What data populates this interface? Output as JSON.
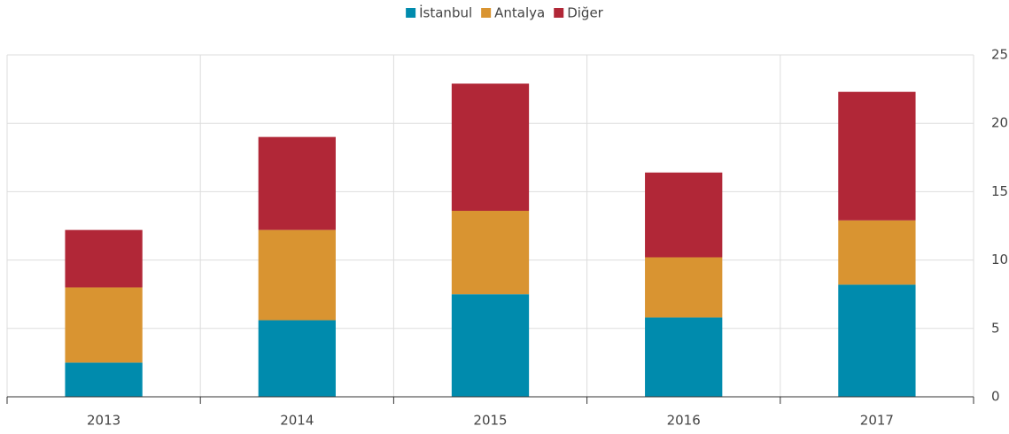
{
  "chart_data": {
    "type": "stacked_bar",
    "categories": [
      "2013",
      "2014",
      "2015",
      "2016",
      "2017"
    ],
    "series": [
      {
        "name": "İstanbul",
        "color": "#008bad",
        "values": [
          2.5,
          5.6,
          7.5,
          5.8,
          8.2
        ]
      },
      {
        "name": "Antalya",
        "color": "#d99431",
        "values": [
          5.5,
          6.6,
          6.1,
          4.4,
          4.7
        ]
      },
      {
        "name": "Diğer",
        "color": "#b12737",
        "values": [
          4.2,
          6.8,
          9.3,
          6.2,
          9.4
        ]
      }
    ],
    "ylim": [
      0,
      25
    ],
    "yticks": [
      0,
      5,
      10,
      15,
      20,
      25
    ],
    "grid": true,
    "legend": "top",
    "yaxis_side": "right"
  }
}
